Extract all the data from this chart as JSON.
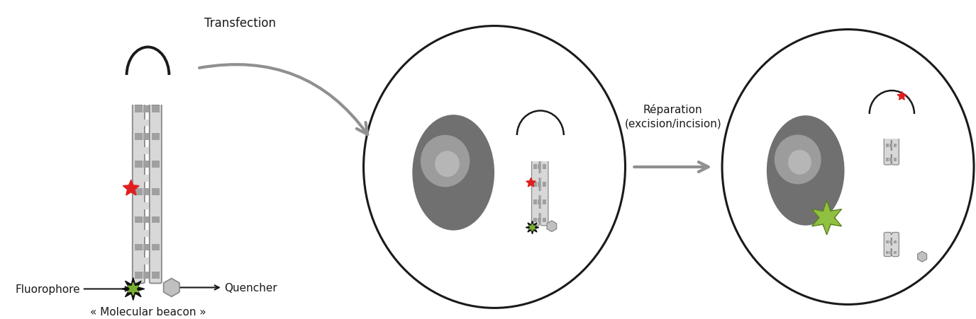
{
  "bg_color": "#ffffff",
  "stem_light": "#d8d8d8",
  "stem_dark": "#a0a0a0",
  "stem_edge": "#888888",
  "loop_edge": "#1a1a1a",
  "cell_edge": "#1a1a1a",
  "nucleus_dark": "#707070",
  "nucleus_light": "#b0b0b0",
  "fluoro_dark": "#111111",
  "fluoro_green": "#7ab030",
  "fluoro_green_bright": "#90c040",
  "quencher_fill": "#c0c0c0",
  "quencher_edge": "#888888",
  "red_star": "#e02020",
  "arrow_gray": "#909090",
  "text_color": "#1a1a1a",
  "transfection_label": "Transfection",
  "reparation_label": "Réparation\n(excision/incision)",
  "fluorophore_label": "Fluorophore",
  "quencher_label": "Quencher",
  "beacon_label": "« Molecular beacon »",
  "label_fontsize": 11,
  "figsize": [
    13.76,
    4.52
  ],
  "dpi": 100
}
